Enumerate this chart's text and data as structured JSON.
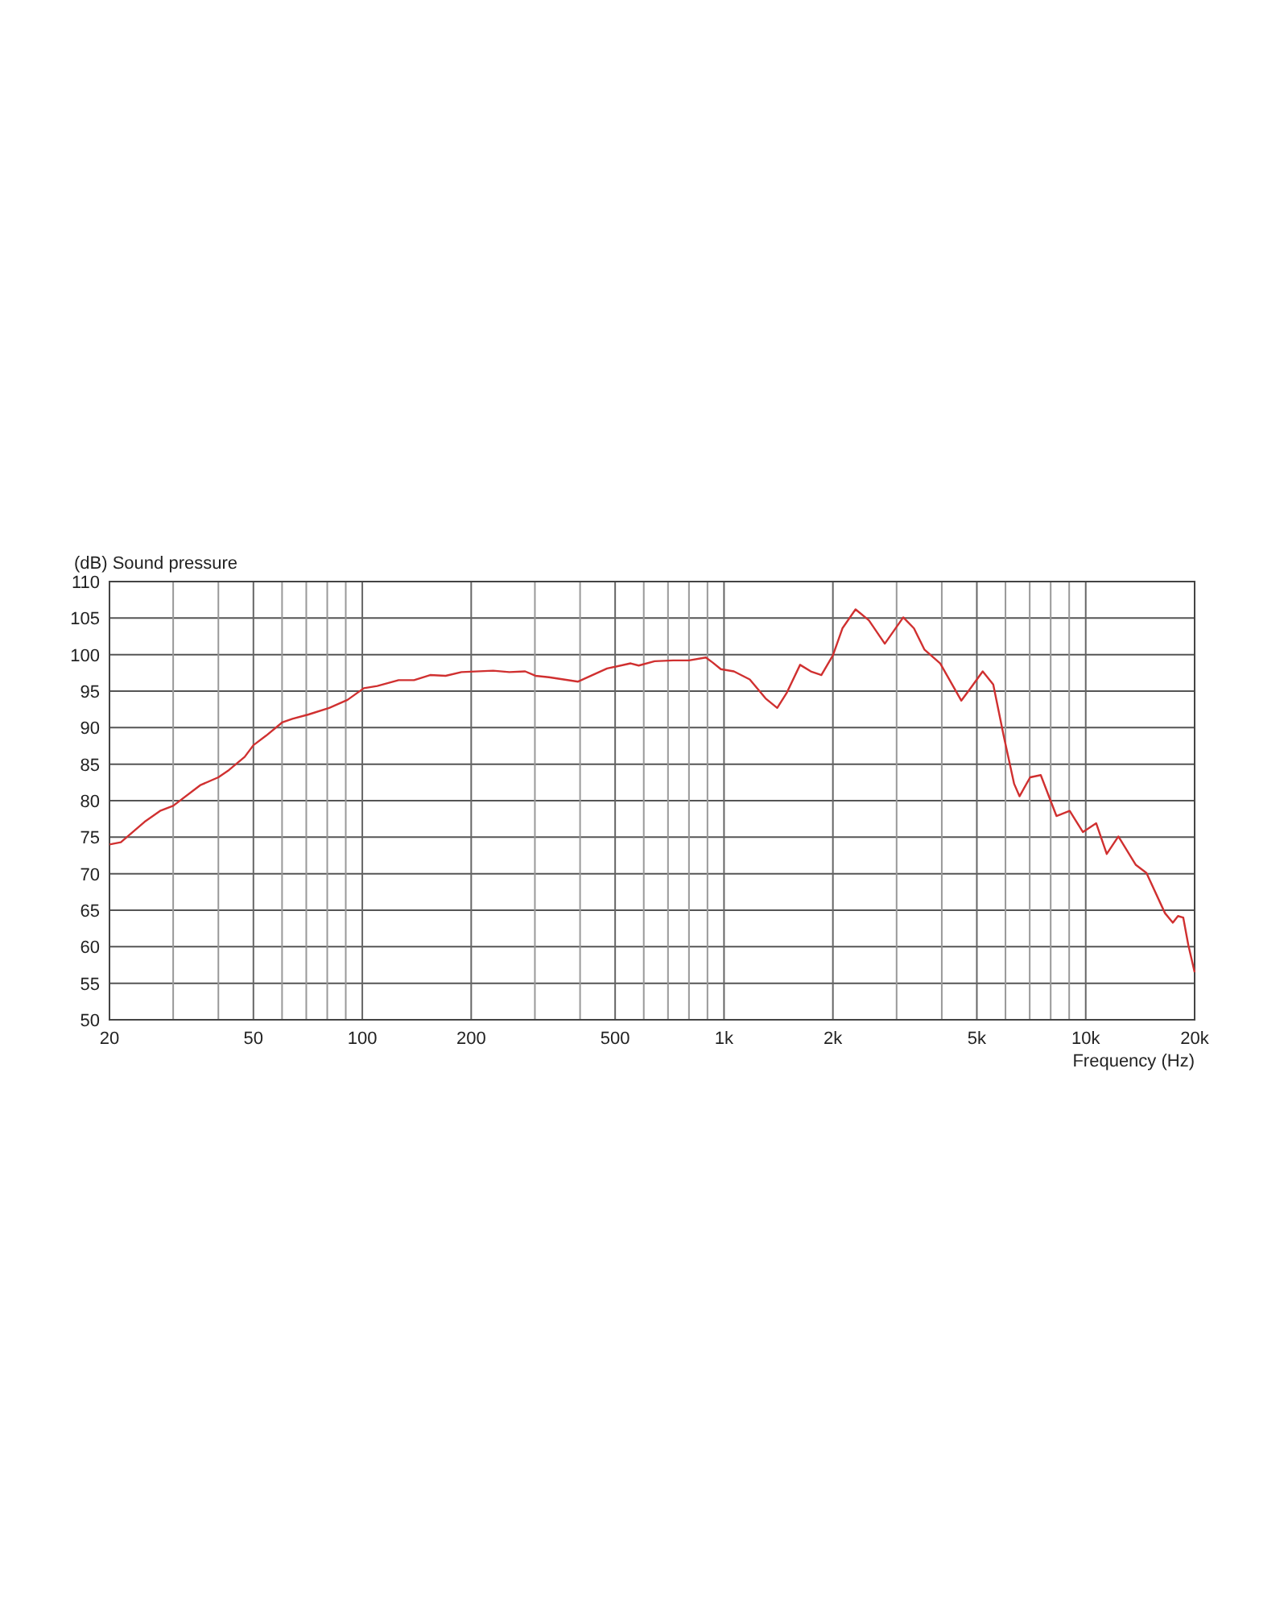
{
  "chart_data": {
    "type": "line",
    "ylabel": "(dB)  Sound pressure",
    "xlabel": "Frequency  (Hz)",
    "log": "x",
    "grid": true,
    "marker": "none",
    "line_style": "solid",
    "xlim": [
      20,
      20000
    ],
    "ylim": [
      50,
      110
    ],
    "xticks": [
      20,
      {
        "value": 30,
        "label": null
      },
      {
        "value": 40,
        "label": null
      },
      50,
      {
        "value": 60,
        "label": null
      },
      {
        "value": 70,
        "label": null
      },
      {
        "value": 80,
        "label": null
      },
      {
        "value": 90,
        "label": null
      },
      100,
      200,
      {
        "value": 300,
        "label": null
      },
      {
        "value": 400,
        "label": null
      },
      500,
      {
        "value": 600,
        "label": null
      },
      {
        "value": 700,
        "label": null
      },
      {
        "value": 800,
        "label": null
      },
      {
        "value": 900,
        "label": null
      },
      {
        "value": 1000,
        "label": "1k"
      },
      {
        "value": 2000,
        "label": "2k"
      },
      {
        "value": 3000,
        "label": null
      },
      {
        "value": 4000,
        "label": null
      },
      {
        "value": 5000,
        "label": "5k"
      },
      {
        "value": 6000,
        "label": null
      },
      {
        "value": 7000,
        "label": null
      },
      {
        "value": 8000,
        "label": null
      },
      {
        "value": 9000,
        "label": null
      },
      {
        "value": 10000,
        "label": "10k"
      },
      {
        "value": 20000,
        "label": "20k"
      }
    ],
    "yticks": [
      50,
      55,
      60,
      65,
      70,
      75,
      80,
      85,
      90,
      95,
      100,
      105,
      110
    ],
    "series": [
      {
        "color": "#d03030",
        "x": [
          20,
          21.5,
          25,
          27.6,
          30,
          35.6,
          40,
          42.8,
          47.3,
          50,
          54.2,
          60,
          64.1,
          71,
          81,
          91,
          101,
          110,
          126,
          139,
          154,
          170,
          188,
          230,
          255,
          282,
          301,
          328,
          395,
          475,
          552,
          581,
          643,
          723,
          800,
          891,
          931,
          980,
          1065,
          1178,
          1303,
          1403,
          1492,
          1623,
          1738,
          1858,
          2000,
          2125,
          2310,
          2515,
          2783,
          3130,
          3350,
          3580,
          3960,
          4530,
          4770,
          5190,
          5550,
          5930,
          6340,
          6560,
          7020,
          7510,
          8300,
          9030,
          9820,
          10690,
          11430,
          12310,
          13760,
          14720,
          16560,
          17410,
          17990,
          18600,
          19220,
          20000
        ],
        "values": [
          74.0,
          74.3,
          77.1,
          78.6,
          79.3,
          82.1,
          83.2,
          84.2,
          86.0,
          87.6,
          88.9,
          90.7,
          91.2,
          91.8,
          92.7,
          93.8,
          95.4,
          95.7,
          96.5,
          96.5,
          97.2,
          97.1,
          97.6,
          97.8,
          97.6,
          97.7,
          97.1,
          96.9,
          96.3,
          98.1,
          98.8,
          98.5,
          99.1,
          99.2,
          99.2,
          99.6,
          98.9,
          98.0,
          97.7,
          96.6,
          94.0,
          92.7,
          94.8,
          98.6,
          97.7,
          97.2,
          99.9,
          103.6,
          106.2,
          104.7,
          101.5,
          105.1,
          103.6,
          100.7,
          98.8,
          93.7,
          95.2,
          97.7,
          95.9,
          88.9,
          82.3,
          80.6,
          83.2,
          83.5,
          77.9,
          78.6,
          75.7,
          76.9,
          72.7,
          75.1,
          71.2,
          70.1,
          64.6,
          63.3,
          64.2,
          64.0,
          60.2,
          56.5
        ]
      }
    ]
  }
}
